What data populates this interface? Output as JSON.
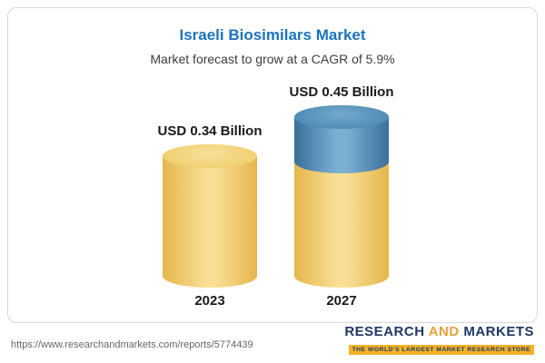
{
  "header": {
    "title": "Israeli Biosimilars Market",
    "subtitle": "Market forecast to grow at a CAGR of 5.9%"
  },
  "chart_data": {
    "type": "bar",
    "title": "Israeli Biosimilars Market",
    "subtitle": "Market forecast to grow at a CAGR of 5.9%",
    "categories": [
      "2023",
      "2027"
    ],
    "values": [
      0.34,
      0.45
    ],
    "value_labels": [
      "USD 0.34 Billion",
      "USD 0.45 Billion"
    ],
    "unit": "USD Billion",
    "cagr": "5.9%",
    "xlabel": "",
    "ylabel": "",
    "legend": "none",
    "grid": false,
    "bar_style": "3d-cylinder",
    "colors": {
      "bar_base": "#f0cd6f",
      "bar_growth_segment": "#4e8bb4",
      "title_accent": "#1b74bc"
    }
  },
  "footer": {
    "url": "https://www.researchandmarkets.com/reports/5774439",
    "logo": {
      "word1": "RESEARCH",
      "word2": "AND",
      "word3": "MARKETS",
      "tagline": "THE WORLD'S LARGEST MARKET RESEARCH STORE"
    }
  }
}
